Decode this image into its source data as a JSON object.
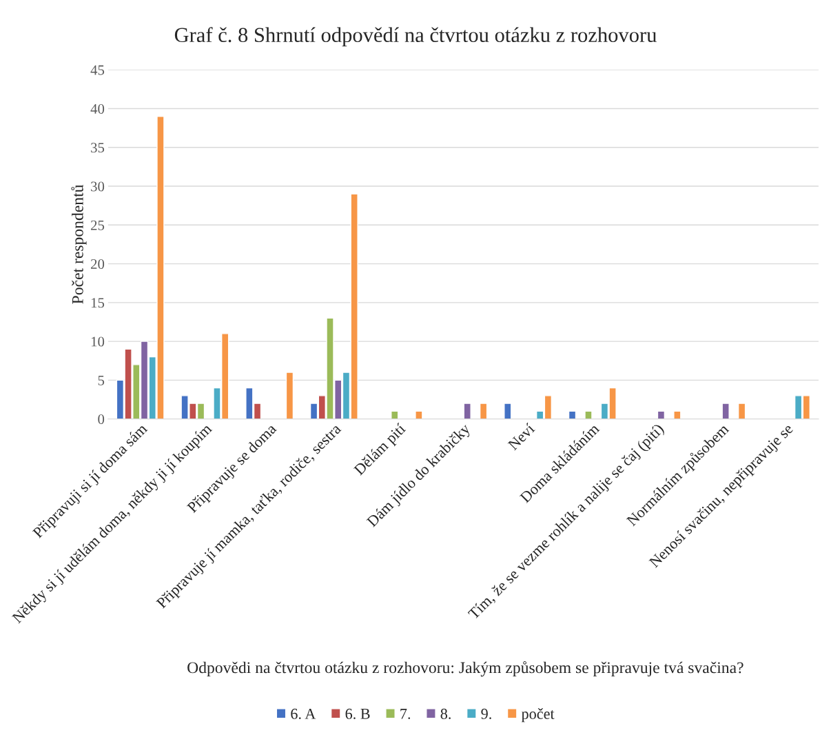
{
  "chart_data": {
    "type": "bar",
    "title": "Graf č. 8 Shrnutí odpovědí na čtvrtou otázku z rozhovoru",
    "xlabel": "Odpovědi na čtvrtou otázku z rozhovoru: Jakým způsobem se připravuje tvá svačina?",
    "ylabel": "Počet respondentů",
    "categories": [
      "Připravuji si jí doma sám",
      "Někdy si jí udělám doma, někdy ji jí koupím",
      "Připravuje se doma",
      "Připravuje jí mamka, taťka, rodiče, sestra",
      "Dělám pití",
      "Dám jídlo do krabičky",
      "Neví",
      "Doma skládáním",
      "Tím, že se vezme rohlík a nalije se čaj (pití)",
      "Normálním způsobem",
      "Nenosí svačinu, nepřipravuje se"
    ],
    "series": [
      {
        "name": "6. A",
        "color": "#4472c4",
        "values": [
          5,
          3,
          4,
          2,
          null,
          null,
          2,
          1,
          null,
          null,
          null
        ]
      },
      {
        "name": "6. B",
        "color": "#c0504d",
        "values": [
          9,
          2,
          2,
          3,
          null,
          null,
          null,
          null,
          null,
          null,
          null
        ]
      },
      {
        "name": "7.",
        "color": "#9bbb59",
        "values": [
          7,
          2,
          null,
          13,
          1,
          null,
          null,
          1,
          null,
          null,
          null
        ]
      },
      {
        "name": "8.",
        "color": "#8064a2",
        "values": [
          10,
          null,
          null,
          5,
          null,
          2,
          null,
          null,
          1,
          2,
          null
        ]
      },
      {
        "name": "9.",
        "color": "#4bacc6",
        "values": [
          8,
          4,
          null,
          6,
          null,
          null,
          1,
          2,
          null,
          null,
          3
        ]
      },
      {
        "name": "počet",
        "color": "#f79646",
        "values": [
          39,
          11,
          6,
          29,
          1,
          2,
          3,
          4,
          1,
          2,
          3
        ]
      }
    ],
    "ylim": [
      0,
      45
    ],
    "yticks": [
      0,
      5,
      10,
      15,
      20,
      25,
      30,
      35,
      40,
      45
    ],
    "grid": "y",
    "legend": "bottom"
  }
}
